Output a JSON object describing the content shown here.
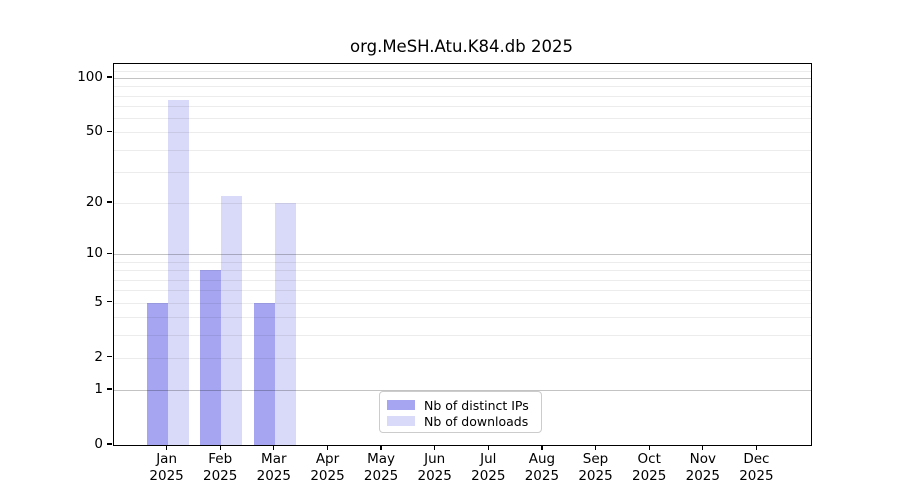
{
  "title": "org.MeSH.Atu.K84.db 2025",
  "chart_data": {
    "type": "bar",
    "title": "org.MeSH.Atu.K84.db 2025",
    "categories": [
      "Jan",
      "Feb",
      "Mar",
      "Apr",
      "May",
      "Jun",
      "Jul",
      "Aug",
      "Sep",
      "Oct",
      "Nov",
      "Dec"
    ],
    "category_year": "2025",
    "series": [
      {
        "name": "Nb of distinct IPs",
        "color": "#a5a5f1",
        "values": [
          5,
          8,
          5,
          0,
          0,
          0,
          0,
          0,
          0,
          0,
          0,
          0
        ]
      },
      {
        "name": "Nb of downloads",
        "color": "#d9d9f9",
        "values": [
          76,
          22,
          20,
          0,
          0,
          0,
          0,
          0,
          0,
          0,
          0,
          0
        ]
      }
    ],
    "y_axis": {
      "ticks": [
        0,
        1,
        2,
        5,
        10,
        20,
        50,
        100
      ],
      "scale": "log10(value+1)",
      "max_value_at_top": 120
    },
    "grid": {
      "on": true,
      "major_lines_at": [
        1,
        10,
        100
      ],
      "minor_lines_at": [
        2,
        3,
        4,
        5,
        6,
        7,
        8,
        9,
        20,
        30,
        40,
        50,
        60,
        70,
        80,
        90,
        110
      ]
    },
    "legend": {
      "position": "bottom-center",
      "entries": [
        "Nb of distinct IPs",
        "Nb of downloads"
      ]
    },
    "colors": {
      "axis": "#000000",
      "major_grid": "#c3c3c3",
      "minor_grid": "#ececec",
      "background": "#ffffff"
    }
  }
}
